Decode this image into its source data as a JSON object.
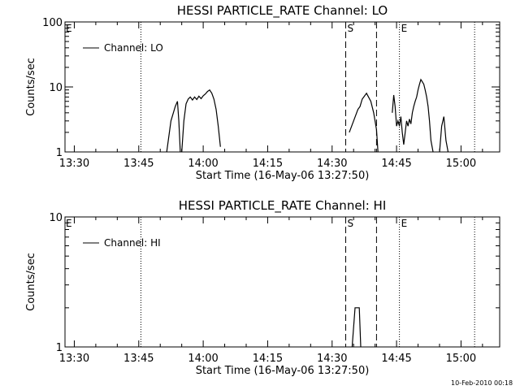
{
  "footer_timestamp": "10-Feb-2010 00:18",
  "chart_data": [
    {
      "type": "line",
      "title": "HESSI PARTICLE_RATE Channel: LO",
      "xlabel": "Start Time (16-May-06 13:27:50)",
      "ylabel": "Counts/sec",
      "xlim": [
        "13:27:50",
        "15:09:00"
      ],
      "ylim": [
        1,
        100
      ],
      "yscale": "log",
      "x_ticks": [
        "13:30",
        "13:45",
        "14:00",
        "14:15",
        "14:30",
        "14:45",
        "15:00"
      ],
      "y_ticks": [
        "1",
        "10",
        "100"
      ],
      "grid": false,
      "legend_position": "top-left",
      "series": [
        {
          "name": "Channel: LO",
          "segments": [
            [
              [
                "13:51:30",
                1
              ],
              [
                "13:52:30",
                3
              ],
              [
                "13:53:30",
                5
              ],
              [
                "13:54:00",
                6
              ],
              [
                "13:54:20",
                3
              ],
              [
                "13:54:40",
                1
              ]
            ],
            [
              [
                "13:55:00",
                1
              ],
              [
                "13:55:30",
                3
              ],
              [
                "13:56:00",
                5.5
              ],
              [
                "13:56:30",
                6.5
              ],
              [
                "13:57:00",
                7
              ],
              [
                "13:57:30",
                6.3
              ],
              [
                "13:58:00",
                7
              ],
              [
                "13:58:30",
                6.4
              ],
              [
                "13:59:00",
                7.2
              ],
              [
                "13:59:30",
                6.6
              ],
              [
                "14:00:00",
                7.3
              ],
              [
                "14:00:30",
                7.8
              ],
              [
                "14:01:00",
                8.5
              ],
              [
                "14:01:30",
                9
              ],
              [
                "14:02:00",
                8
              ],
              [
                "14:02:30",
                6.5
              ],
              [
                "14:03:00",
                4.5
              ],
              [
                "14:03:30",
                2.5
              ],
              [
                "14:04:00",
                1.2
              ]
            ],
            [
              [
                "14:34:00",
                2
              ],
              [
                "14:35:00",
                3
              ],
              [
                "14:36:00",
                4.5
              ],
              [
                "14:36:30",
                5
              ],
              [
                "14:37:00",
                6.5
              ],
              [
                "14:38:00",
                8
              ],
              [
                "14:39:00",
                6
              ],
              [
                "14:39:40",
                4
              ],
              [
                "14:40:20",
                2.2
              ],
              [
                "14:40:40",
                1
              ]
            ],
            [
              [
                "14:44:00",
                4
              ],
              [
                "14:44:20",
                7.5
              ],
              [
                "14:44:40",
                5
              ],
              [
                "14:45:00",
                2.5
              ],
              [
                "14:45:20",
                3
              ],
              [
                "14:45:40",
                2.5
              ],
              [
                "14:46:00",
                3.5
              ],
              [
                "14:46:20",
                2
              ],
              [
                "14:46:40",
                1.3
              ],
              [
                "14:47:00",
                2
              ],
              [
                "14:47:20",
                3
              ],
              [
                "14:47:40",
                2.5
              ],
              [
                "14:48:00",
                3.2
              ],
              [
                "14:48:20",
                2.7
              ],
              [
                "14:48:40",
                4
              ],
              [
                "14:49:00",
                5
              ],
              [
                "14:49:20",
                6
              ],
              [
                "14:49:40",
                7
              ],
              [
                "14:50:00",
                9
              ],
              [
                "14:50:20",
                11
              ],
              [
                "14:50:40",
                13
              ],
              [
                "14:51:00",
                12
              ],
              [
                "14:51:20",
                11
              ],
              [
                "14:51:40",
                9
              ],
              [
                "14:52:00",
                7
              ],
              [
                "14:52:20",
                5
              ],
              [
                "14:52:40",
                3
              ],
              [
                "14:53:00",
                1.5
              ],
              [
                "14:53:30",
                1
              ]
            ],
            [
              [
                "14:55:00",
                1
              ],
              [
                "14:55:30",
                2.5
              ],
              [
                "14:56:00",
                3.5
              ],
              [
                "14:56:30",
                1.5
              ],
              [
                "14:57:00",
                1
              ]
            ]
          ]
        }
      ],
      "markers": [
        {
          "time": "13:45:30",
          "style": "dotted",
          "label": ""
        },
        {
          "time": "14:33:10",
          "style": "dashed",
          "label": "S"
        },
        {
          "time": "14:40:20",
          "style": "dashed",
          "label": ""
        },
        {
          "time": "14:45:40",
          "style": "dotted",
          "label": "E"
        },
        {
          "time": "15:03:10",
          "style": "dotted",
          "label": ""
        }
      ],
      "corner_label": "E"
    },
    {
      "type": "line",
      "title": "HESSI PARTICLE_RATE Channel: HI",
      "xlabel": "Start Time (16-May-06 13:27:50)",
      "ylabel": "Counts/sec",
      "xlim": [
        "13:27:50",
        "15:09:00"
      ],
      "ylim": [
        1,
        10
      ],
      "yscale": "log",
      "x_ticks": [
        "13:30",
        "13:45",
        "14:00",
        "14:15",
        "14:30",
        "14:45",
        "15:00"
      ],
      "y_ticks": [
        "1",
        "10"
      ],
      "grid": false,
      "legend_position": "top-left",
      "series": [
        {
          "name": "Channel: HI",
          "segments": [
            [
              [
                "14:34:40",
                1
              ],
              [
                "14:35:20",
                2
              ],
              [
                "14:36:20",
                2
              ],
              [
                "14:36:40",
                1
              ]
            ]
          ]
        }
      ],
      "markers": [
        {
          "time": "13:45:30",
          "style": "dotted",
          "label": ""
        },
        {
          "time": "14:33:10",
          "style": "dashed",
          "label": "S"
        },
        {
          "time": "14:40:20",
          "style": "dashed",
          "label": ""
        },
        {
          "time": "14:45:40",
          "style": "dotted",
          "label": "E"
        },
        {
          "time": "15:03:10",
          "style": "dotted",
          "label": ""
        }
      ],
      "corner_label": "E"
    }
  ]
}
